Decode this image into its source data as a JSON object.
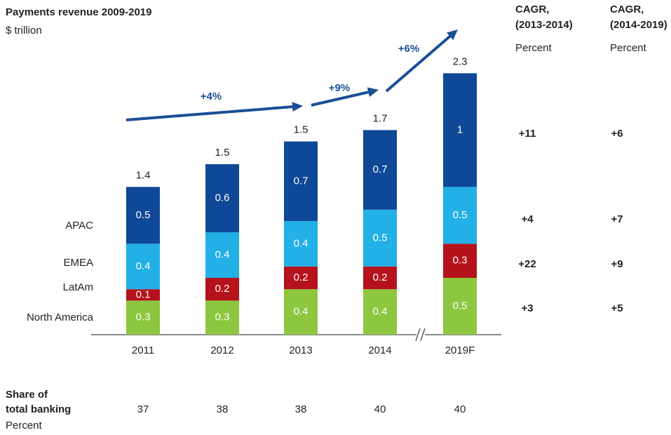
{
  "chart_data": {
    "type": "bar",
    "stacked": true,
    "title": "Payments revenue 2009-2019",
    "subtitle": "$ trillion",
    "categories": [
      "2011",
      "2012",
      "2013",
      "2014",
      "2019F"
    ],
    "series": [
      {
        "name": "North America",
        "color": "#8dc63f",
        "values": [
          0.3,
          0.3,
          0.4,
          0.4,
          0.5
        ]
      },
      {
        "name": "LatAm",
        "color": "#b5121b",
        "values": [
          0.1,
          0.2,
          0.2,
          0.2,
          0.3
        ]
      },
      {
        "name": "EMEA",
        "color": "#22b0e6",
        "values": [
          0.4,
          0.4,
          0.4,
          0.5,
          0.5
        ]
      },
      {
        "name": "APAC",
        "color": "#0f4896",
        "values": [
          0.5,
          0.6,
          0.7,
          0.7,
          1.0
        ]
      }
    ],
    "totals": [
      1.4,
      1.5,
      1.5,
      1.7,
      2.3
    ],
    "growth": [
      "+4%",
      "+9%",
      "+6%"
    ],
    "growth_color": "#1a4f96",
    "cagr": [
      {
        "title": [
          "CAGR,",
          "(2013-2014)"
        ],
        "unit": "Percent",
        "values": [
          "+11",
          "+4",
          "+22",
          "+3"
        ]
      },
      {
        "title": [
          "CAGR,",
          "(2014-2019)"
        ],
        "unit": "Percent",
        "values": [
          "+6",
          "+7",
          "+9",
          "+5"
        ]
      }
    ],
    "share": {
      "title": [
        "Share of",
        "total banking"
      ],
      "unit": "Percent",
      "values": [
        37,
        38,
        38,
        40,
        40
      ]
    }
  }
}
